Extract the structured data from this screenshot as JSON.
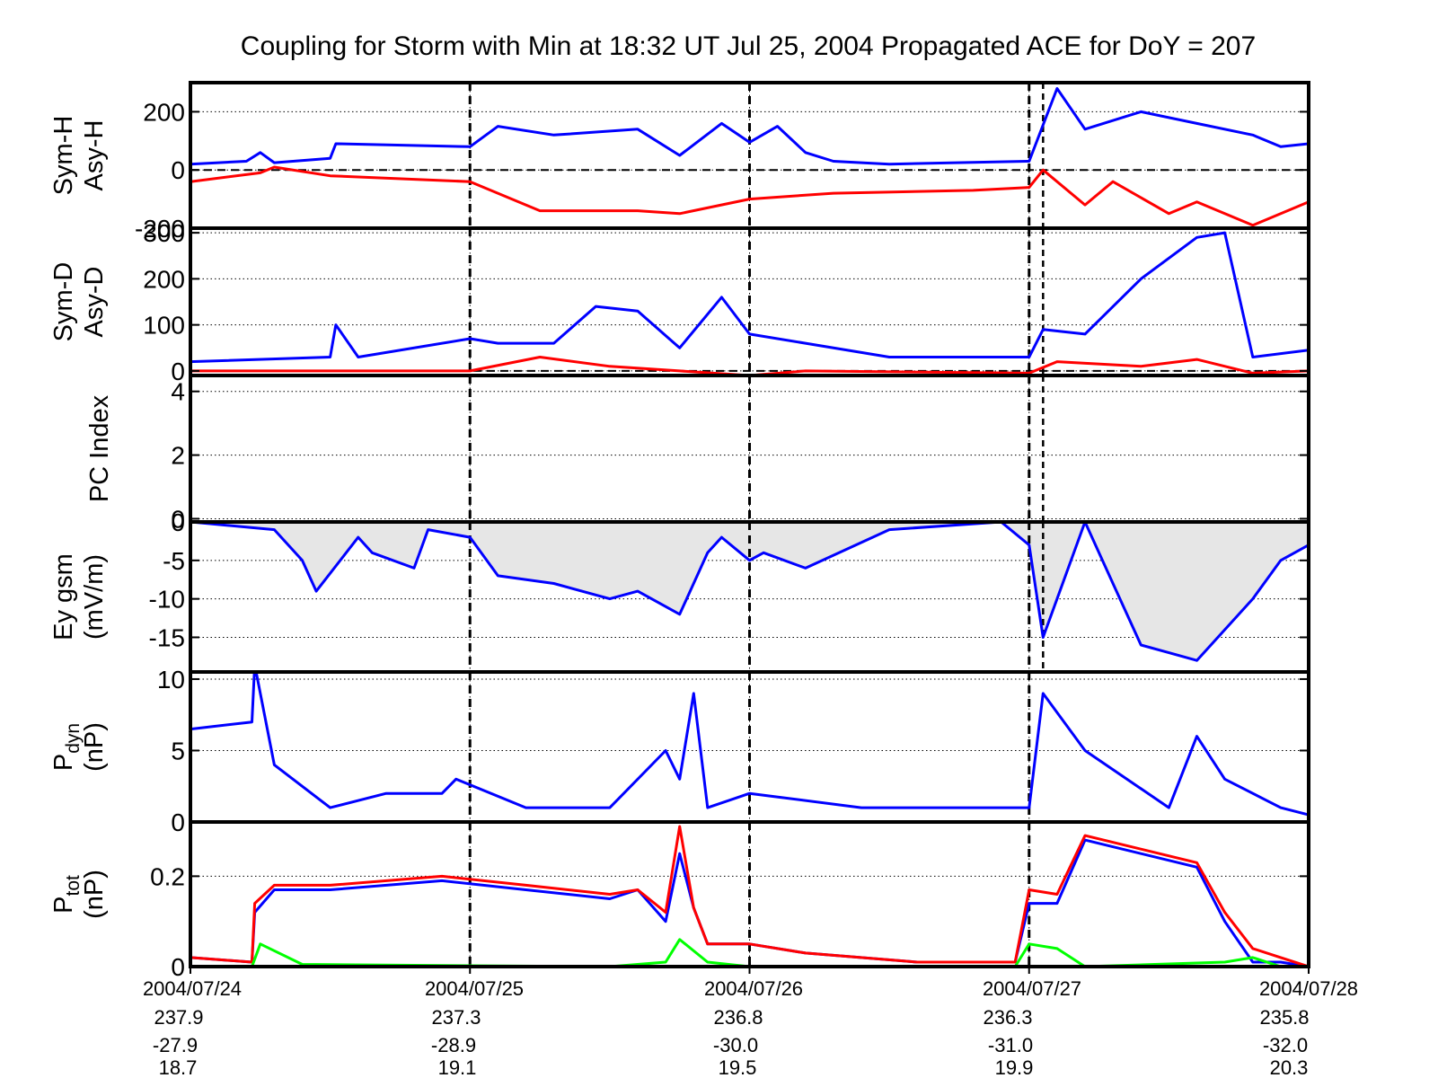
{
  "title": "Coupling for Storm with Min at 18:32 UT Jul 25, 2004  Propagated ACE for DoY = 207",
  "colors": {
    "blue": "#0000ff",
    "red": "#ff0000",
    "green": "#00ff00",
    "fill": "#e6e6e6",
    "axis": "#000000"
  },
  "x_axis": {
    "range": [
      0,
      4
    ],
    "date_labels": [
      "2004/07/24",
      "2004/07/25",
      "2004/07/26",
      "2004/07/27",
      "2004/07/28"
    ],
    "row2": [
      "237.9",
      "237.3",
      "236.8",
      "236.3",
      "235.8"
    ],
    "row3": [
      "-27.9",
      "-28.9",
      "-30.0",
      "-31.0",
      "-32.0"
    ],
    "row4": [
      "18.7",
      "19.1",
      "19.5",
      "19.9",
      "20.3"
    ]
  },
  "storm_min_day": 3.05,
  "chart_data": [
    {
      "type": "line",
      "ylabel": [
        "Sym-H",
        "Asy-H"
      ],
      "ylim": [
        -200,
        300
      ],
      "yticks": [
        "200",
        "0",
        "-200"
      ],
      "ytick_values": [
        200,
        0,
        -200
      ],
      "grid": true,
      "zero_line": true,
      "series": [
        {
          "color": "blue",
          "x": [
            0,
            0.2,
            0.25,
            0.3,
            0.5,
            0.52,
            1.0,
            1.1,
            1.3,
            1.6,
            1.75,
            1.9,
            2.0,
            2.1,
            2.2,
            2.3,
            2.5,
            3.0,
            3.1,
            3.2,
            3.4,
            3.6,
            3.8,
            3.9,
            4.0
          ],
          "y": [
            20,
            30,
            60,
            25,
            40,
            90,
            80,
            150,
            120,
            140,
            50,
            160,
            95,
            150,
            60,
            30,
            20,
            30,
            280,
            140,
            200,
            160,
            120,
            80,
            90
          ]
        },
        {
          "color": "red",
          "x": [
            0,
            0.25,
            0.3,
            0.5,
            1.0,
            1.25,
            1.6,
            1.75,
            2.0,
            2.3,
            2.8,
            3.0,
            3.05,
            3.2,
            3.3,
            3.5,
            3.6,
            3.8,
            4.0
          ],
          "y": [
            -40,
            -10,
            10,
            -20,
            -40,
            -140,
            -140,
            -150,
            -100,
            -80,
            -70,
            -60,
            0,
            -120,
            -40,
            -150,
            -110,
            -190,
            -110
          ]
        }
      ]
    },
    {
      "type": "line",
      "ylabel": [
        "Sym-D",
        "Asy-D"
      ],
      "ylim": [
        -10,
        310
      ],
      "yticks": [
        "300",
        "200",
        "100",
        "0"
      ],
      "ytick_values": [
        300,
        200,
        100,
        0
      ],
      "grid": true,
      "zero_line": true,
      "series": [
        {
          "color": "blue",
          "x": [
            0,
            0.5,
            0.52,
            0.6,
            1.0,
            1.1,
            1.3,
            1.45,
            1.6,
            1.75,
            1.9,
            2.0,
            2.2,
            2.5,
            3.0,
            3.05,
            3.2,
            3.4,
            3.6,
            3.7,
            3.8,
            4.0
          ],
          "y": [
            20,
            30,
            100,
            30,
            70,
            60,
            60,
            140,
            130,
            50,
            160,
            80,
            60,
            30,
            30,
            90,
            80,
            200,
            290,
            300,
            30,
            45
          ]
        },
        {
          "color": "red",
          "x": [
            0,
            1.0,
            1.25,
            1.5,
            1.75,
            2.0,
            2.2,
            3.0,
            3.1,
            3.4,
            3.6,
            3.8,
            4.0
          ],
          "y": [
            0,
            0,
            30,
            10,
            0,
            -10,
            0,
            -5,
            20,
            10,
            25,
            -5,
            0
          ]
        }
      ]
    },
    {
      "type": "line",
      "ylabel": [
        "PC Index"
      ],
      "ylim": [
        -0.1,
        4.5
      ],
      "yticks": [
        "4",
        "2",
        "0"
      ],
      "ytick_values": [
        4,
        2,
        0
      ],
      "grid": true,
      "zero_line": false,
      "series": []
    },
    {
      "type": "area",
      "ylabel": [
        "Ey gsm",
        "(mV/m)"
      ],
      "ylim": [
        -19.5,
        0
      ],
      "yticks": [
        "0",
        "-5",
        "-10",
        "-15"
      ],
      "ytick_values": [
        0,
        -5,
        -10,
        -15
      ],
      "grid": true,
      "zero_line": false,
      "series": [
        {
          "color": "blue",
          "x": [
            0,
            0.3,
            0.4,
            0.45,
            0.6,
            0.65,
            0.8,
            0.85,
            1.0,
            1.1,
            1.3,
            1.5,
            1.6,
            1.75,
            1.85,
            1.9,
            2.0,
            2.05,
            2.2,
            2.5,
            2.9,
            3.0,
            3.05,
            3.1,
            3.2,
            3.3,
            3.4,
            3.5,
            3.6,
            3.8,
            3.9,
            4.0
          ],
          "y": [
            0,
            -1,
            -5,
            -9,
            -2,
            -4,
            -6,
            -1,
            -2,
            -7,
            -8,
            -10,
            -9,
            -12,
            -4,
            -2,
            -5,
            -4,
            -6,
            -1,
            0,
            -3,
            -15,
            -10,
            0,
            -8,
            -16,
            -17,
            -18,
            -10,
            -5,
            -3
          ]
        }
      ]
    },
    {
      "type": "line",
      "ylabel": [
        "P_dyn",
        "(nP)"
      ],
      "ylim": [
        0,
        10.5
      ],
      "yticks": [
        "10",
        "5",
        "0"
      ],
      "ytick_values": [
        10,
        5,
        0
      ],
      "grid": true,
      "zero_line": false,
      "series": [
        {
          "color": "blue",
          "x": [
            0,
            0.22,
            0.23,
            0.3,
            0.5,
            0.7,
            0.9,
            0.95,
            1.2,
            1.5,
            1.7,
            1.75,
            1.8,
            1.85,
            2.0,
            2.4,
            2.9,
            3.0,
            3.05,
            3.2,
            3.5,
            3.6,
            3.7,
            3.9,
            4.0
          ],
          "y": [
            6.5,
            7,
            11,
            4,
            1,
            2,
            2,
            3,
            1,
            1,
            5,
            3,
            9,
            1,
            2,
            1,
            1,
            1,
            9,
            5,
            1,
            6,
            3,
            1,
            0.5
          ]
        }
      ]
    },
    {
      "type": "line",
      "ylabel": [
        "P_tot",
        "(nP)"
      ],
      "ylim": [
        0,
        0.32
      ],
      "yticks": [
        "0.2",
        "0"
      ],
      "ytick_values": [
        0.2,
        0
      ],
      "grid": true,
      "zero_line": false,
      "series": [
        {
          "color": "blue",
          "x": [
            0,
            0.22,
            0.23,
            0.3,
            0.5,
            0.9,
            1.2,
            1.5,
            1.6,
            1.7,
            1.75,
            1.8,
            1.85,
            2.0,
            2.2,
            2.6,
            2.95,
            3.0,
            3.1,
            3.2,
            3.6,
            3.7,
            3.8,
            3.9,
            4.0
          ],
          "y": [
            0.02,
            0.01,
            0.12,
            0.17,
            0.17,
            0.19,
            0.17,
            0.15,
            0.17,
            0.1,
            0.25,
            0.13,
            0.05,
            0.05,
            0.03,
            0.01,
            0.01,
            0.14,
            0.14,
            0.28,
            0.22,
            0.1,
            0.01,
            0.01,
            0.0
          ]
        },
        {
          "color": "red",
          "x": [
            0,
            0.22,
            0.23,
            0.3,
            0.5,
            0.9,
            1.2,
            1.5,
            1.6,
            1.7,
            1.75,
            1.8,
            1.85,
            2.0,
            2.2,
            2.6,
            2.95,
            3.0,
            3.1,
            3.2,
            3.6,
            3.7,
            3.8,
            3.9,
            4.0
          ],
          "y": [
            0.02,
            0.01,
            0.14,
            0.18,
            0.18,
            0.2,
            0.18,
            0.16,
            0.17,
            0.12,
            0.31,
            0.13,
            0.05,
            0.05,
            0.03,
            0.01,
            0.01,
            0.17,
            0.16,
            0.29,
            0.23,
            0.12,
            0.04,
            0.02,
            0.0
          ]
        },
        {
          "color": "green",
          "x": [
            0,
            0.22,
            0.25,
            0.4,
            1.0,
            1.5,
            1.7,
            1.75,
            1.85,
            2.0,
            2.95,
            3.0,
            3.1,
            3.2,
            3.7,
            3.8,
            3.9,
            4.0
          ],
          "y": [
            0,
            0,
            0.05,
            0.005,
            0.002,
            0.0,
            0.01,
            0.06,
            0.01,
            0.0,
            0.0,
            0.05,
            0.04,
            0.0,
            0.01,
            0.02,
            0.0,
            0.0
          ]
        }
      ]
    }
  ]
}
